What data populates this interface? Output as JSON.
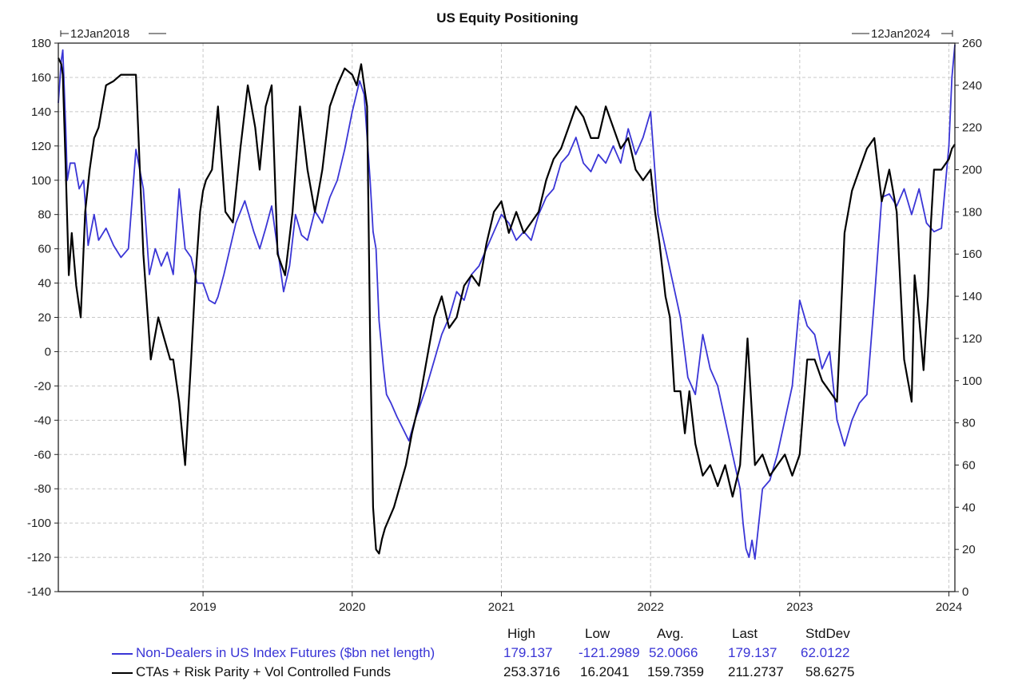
{
  "chart_data": {
    "type": "line",
    "title": "US Equity Positioning",
    "range_start_label": "12Jan2018",
    "range_end_label": "12Jan2024",
    "x_tick_labels": [
      "2019",
      "2020",
      "2021",
      "2022",
      "2023",
      "2024"
    ],
    "x_ticks": [
      2019,
      2020,
      2021,
      2022,
      2023,
      2024
    ],
    "xlim": [
      2018.03,
      2024.04
    ],
    "y_left": {
      "ylim": [
        -140,
        180
      ],
      "ticks": [
        180,
        160,
        140,
        120,
        100,
        80,
        60,
        40,
        20,
        0,
        -20,
        -40,
        -60,
        -80,
        -100,
        -120,
        -140
      ]
    },
    "y_right": {
      "ylim": [
        0,
        260
      ],
      "ticks": [
        260,
        240,
        220,
        200,
        180,
        160,
        140,
        120,
        100,
        80,
        60,
        40,
        20,
        0
      ]
    },
    "grid": true,
    "legend_headers": [
      "High",
      "Low",
      "Avg.",
      "Last",
      "StdDev"
    ],
    "series": [
      {
        "name": "Non-Dealers in US Index Futures ($bn net length)",
        "axis": "left",
        "color": "#3a35d6",
        "stats": [
          "179.137",
          "-121.2989",
          "52.0066",
          "179.137",
          "62.0122"
        ],
        "x": [
          2018.03,
          2018.05,
          2018.06,
          2018.08,
          2018.09,
          2018.11,
          2018.14,
          2018.17,
          2018.2,
          2018.23,
          2018.27,
          2018.3,
          2018.35,
          2018.4,
          2018.45,
          2018.5,
          2018.55,
          2018.6,
          2018.64,
          2018.68,
          2018.72,
          2018.76,
          2018.8,
          2018.84,
          2018.88,
          2018.92,
          2018.96,
          2019.0,
          2019.04,
          2019.08,
          2019.1,
          2019.14,
          2019.18,
          2019.22,
          2019.28,
          2019.34,
          2019.38,
          2019.42,
          2019.46,
          2019.5,
          2019.54,
          2019.58,
          2019.62,
          2019.66,
          2019.7,
          2019.75,
          2019.8,
          2019.85,
          2019.9,
          2019.95,
          2020.0,
          2020.05,
          2020.08,
          2020.12,
          2020.14,
          2020.16,
          2020.18,
          2020.21,
          2020.23,
          2020.26,
          2020.3,
          2020.34,
          2020.38,
          2020.42,
          2020.46,
          2020.5,
          2020.55,
          2020.6,
          2020.65,
          2020.7,
          2020.75,
          2020.8,
          2020.85,
          2020.9,
          2020.95,
          2021.0,
          2021.05,
          2021.1,
          2021.15,
          2021.2,
          2021.25,
          2021.3,
          2021.35,
          2021.4,
          2021.45,
          2021.5,
          2021.55,
          2021.6,
          2021.65,
          2021.7,
          2021.75,
          2021.8,
          2021.85,
          2021.9,
          2021.95,
          2022.0,
          2022.05,
          2022.1,
          2022.15,
          2022.2,
          2022.25,
          2022.3,
          2022.35,
          2022.4,
          2022.45,
          2022.5,
          2022.55,
          2022.6,
          2022.62,
          2022.64,
          2022.66,
          2022.68,
          2022.7,
          2022.75,
          2022.8,
          2022.85,
          2022.9,
          2022.95,
          2023.0,
          2023.05,
          2023.1,
          2023.15,
          2023.2,
          2023.25,
          2023.3,
          2023.35,
          2023.4,
          2023.45,
          2023.5,
          2023.55,
          2023.6,
          2023.65,
          2023.7,
          2023.75,
          2023.8,
          2023.85,
          2023.9,
          2023.95,
          2024.0,
          2024.02,
          2024.04
        ],
        "y": [
          145,
          170,
          176,
          130,
          100,
          110,
          110,
          95,
          100,
          62,
          80,
          65,
          72,
          62,
          55,
          60,
          118,
          95,
          45,
          60,
          50,
          58,
          45,
          95,
          60,
          55,
          40,
          40,
          30,
          28,
          32,
          45,
          60,
          75,
          88,
          70,
          60,
          72,
          85,
          60,
          35,
          50,
          80,
          68,
          65,
          82,
          75,
          90,
          100,
          118,
          140,
          158,
          150,
          100,
          70,
          60,
          18,
          -10,
          -25,
          -30,
          -38,
          -45,
          -52,
          -40,
          -30,
          -20,
          -5,
          10,
          20,
          35,
          30,
          45,
          50,
          60,
          70,
          80,
          75,
          65,
          70,
          65,
          80,
          90,
          95,
          110,
          115,
          125,
          110,
          105,
          115,
          110,
          120,
          110,
          130,
          115,
          125,
          140,
          80,
          60,
          40,
          20,
          -15,
          -25,
          10,
          -10,
          -20,
          -40,
          -60,
          -80,
          -100,
          -115,
          -120,
          -110,
          -121,
          -80,
          -75,
          -60,
          -40,
          -20,
          30,
          15,
          10,
          -10,
          0,
          -40,
          -55,
          -40,
          -30,
          -25,
          30,
          90,
          92,
          85,
          95,
          80,
          95,
          75,
          70,
          72,
          120,
          160,
          179
        ]
      },
      {
        "name": "CTAs + Risk Parity + Vol Controlled Funds",
        "axis": "right",
        "color": "#000000",
        "stats": [
          "253.3716",
          "16.2041",
          "159.7359",
          "211.2737",
          "58.6275"
        ],
        "x": [
          2018.03,
          2018.05,
          2018.06,
          2018.08,
          2018.1,
          2018.12,
          2018.15,
          2018.18,
          2018.21,
          2018.24,
          2018.27,
          2018.3,
          2018.35,
          2018.4,
          2018.45,
          2018.5,
          2018.55,
          2018.6,
          2018.65,
          2018.7,
          2018.74,
          2018.78,
          2018.8,
          2018.84,
          2018.88,
          2018.92,
          2018.95,
          2018.98,
          2019.0,
          2019.02,
          2019.06,
          2019.1,
          2019.15,
          2019.2,
          2019.25,
          2019.3,
          2019.35,
          2019.38,
          2019.42,
          2019.46,
          2019.5,
          2019.55,
          2019.6,
          2019.65,
          2019.7,
          2019.75,
          2019.8,
          2019.85,
          2019.9,
          2019.95,
          2020.0,
          2020.03,
          2020.06,
          2020.1,
          2020.12,
          2020.14,
          2020.16,
          2020.18,
          2020.2,
          2020.22,
          2020.25,
          2020.28,
          2020.32,
          2020.36,
          2020.4,
          2020.45,
          2020.5,
          2020.55,
          2020.6,
          2020.65,
          2020.7,
          2020.75,
          2020.8,
          2020.85,
          2020.9,
          2020.95,
          2021.0,
          2021.05,
          2021.1,
          2021.15,
          2021.2,
          2021.25,
          2021.3,
          2021.35,
          2021.4,
          2021.45,
          2021.5,
          2021.55,
          2021.6,
          2021.65,
          2021.7,
          2021.75,
          2021.8,
          2021.85,
          2021.9,
          2021.95,
          2022.0,
          2022.03,
          2022.06,
          2022.1,
          2022.13,
          2022.16,
          2022.2,
          2022.23,
          2022.26,
          2022.3,
          2022.35,
          2022.4,
          2022.45,
          2022.5,
          2022.55,
          2022.6,
          2022.65,
          2022.7,
          2022.75,
          2022.8,
          2022.85,
          2022.9,
          2022.95,
          2023.0,
          2023.05,
          2023.1,
          2023.15,
          2023.2,
          2023.25,
          2023.3,
          2023.35,
          2023.4,
          2023.45,
          2023.5,
          2023.55,
          2023.6,
          2023.65,
          2023.7,
          2023.75,
          2023.77,
          2023.8,
          2023.83,
          2023.86,
          2023.88,
          2023.9,
          2023.95,
          2024.0,
          2024.02,
          2024.04
        ],
        "y": [
          253,
          250,
          245,
          200,
          150,
          170,
          145,
          130,
          180,
          200,
          215,
          220,
          240,
          242,
          245,
          245,
          245,
          160,
          110,
          130,
          120,
          110,
          110,
          90,
          60,
          110,
          150,
          180,
          190,
          195,
          200,
          230,
          180,
          175,
          210,
          240,
          220,
          200,
          230,
          240,
          160,
          150,
          180,
          230,
          200,
          180,
          200,
          230,
          240,
          248,
          245,
          240,
          250,
          230,
          120,
          40,
          20,
          18,
          25,
          30,
          35,
          40,
          50,
          60,
          75,
          90,
          110,
          130,
          140,
          125,
          130,
          145,
          150,
          145,
          165,
          180,
          185,
          170,
          180,
          170,
          175,
          180,
          195,
          205,
          210,
          220,
          230,
          225,
          215,
          215,
          230,
          220,
          210,
          215,
          200,
          195,
          200,
          180,
          165,
          140,
          130,
          95,
          95,
          75,
          95,
          70,
          55,
          60,
          50,
          60,
          45,
          60,
          120,
          60,
          65,
          55,
          60,
          65,
          55,
          65,
          110,
          110,
          100,
          95,
          90,
          170,
          190,
          200,
          210,
          215,
          185,
          200,
          180,
          110,
          90,
          150,
          130,
          105,
          140,
          175,
          200,
          200,
          205,
          210,
          212
        ]
      }
    ]
  }
}
